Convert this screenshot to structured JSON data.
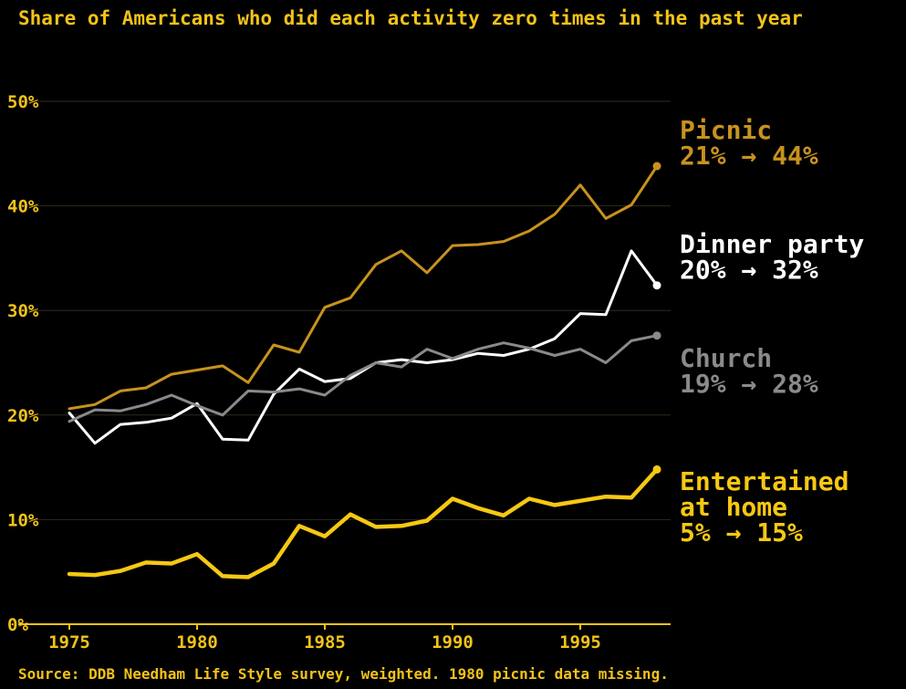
{
  "chart_data": {
    "type": "line",
    "title": "Share of Americans who did each activity zero times in the past year",
    "source": "Source: DDB Needham Life Style survey, weighted. 1980 picnic data missing.",
    "xlim": [
      1975,
      1998
    ],
    "ylim": [
      0,
      50
    ],
    "x_ticks": [
      1975,
      1980,
      1985,
      1990,
      1995
    ],
    "y_ticks": [
      {
        "value": 0,
        "label": "0%"
      },
      {
        "value": 10,
        "label": "10%"
      },
      {
        "value": 20,
        "label": "20%"
      },
      {
        "value": 30,
        "label": "30%"
      },
      {
        "value": 40,
        "label": "40%"
      },
      {
        "value": 50,
        "label": "50%"
      }
    ],
    "grid": true,
    "x": [
      1975,
      1976,
      1977,
      1978,
      1979,
      1980,
      1981,
      1982,
      1983,
      1984,
      1985,
      1986,
      1987,
      1988,
      1989,
      1990,
      1991,
      1992,
      1993,
      1994,
      1995,
      1996,
      1997,
      1998
    ],
    "series": [
      {
        "name": "Picnic",
        "label_lines": [
          "Picnic",
          "21% → 44%"
        ],
        "color": "#c8921e",
        "values": [
          20.6,
          21.0,
          22.3,
          22.6,
          23.9,
          24.3,
          24.7,
          23.1,
          26.7,
          26.0,
          30.3,
          31.2,
          34.4,
          35.7,
          33.6,
          36.2,
          36.3,
          36.6,
          37.6,
          39.2,
          42.0,
          38.8,
          40.1,
          43.8
        ]
      },
      {
        "name": "Dinner party",
        "label_lines": [
          "Dinner party",
          "20% → 32%"
        ],
        "color": "#ffffff",
        "values": [
          20.2,
          17.3,
          19.1,
          19.3,
          19.7,
          21.1,
          17.7,
          17.6,
          22.0,
          24.4,
          23.2,
          23.5,
          25.0,
          25.3,
          25.0,
          25.3,
          25.9,
          25.7,
          26.3,
          27.3,
          29.7,
          29.6,
          35.7,
          32.4
        ]
      },
      {
        "name": "Church",
        "label_lines": [
          "Church",
          "19% → 28%"
        ],
        "color": "#8a8a8a",
        "values": [
          19.4,
          20.5,
          20.4,
          21.0,
          21.9,
          20.9,
          20.0,
          22.3,
          22.2,
          22.5,
          21.9,
          23.8,
          25.0,
          24.6,
          26.3,
          25.4,
          26.3,
          26.9,
          26.4,
          25.7,
          26.3,
          25.0,
          27.1,
          27.6
        ]
      },
      {
        "name": "Entertained at home",
        "label_lines": [
          "Entertained",
          "at home",
          "5% → 15%"
        ],
        "color": "#f7c812",
        "values": [
          4.8,
          4.7,
          5.1,
          5.9,
          5.8,
          6.7,
          4.6,
          4.5,
          5.8,
          9.4,
          8.4,
          10.5,
          9.3,
          9.4,
          9.9,
          12.0,
          11.1,
          10.4,
          12.0,
          11.4,
          11.8,
          12.2,
          12.1,
          14.8
        ]
      }
    ]
  }
}
